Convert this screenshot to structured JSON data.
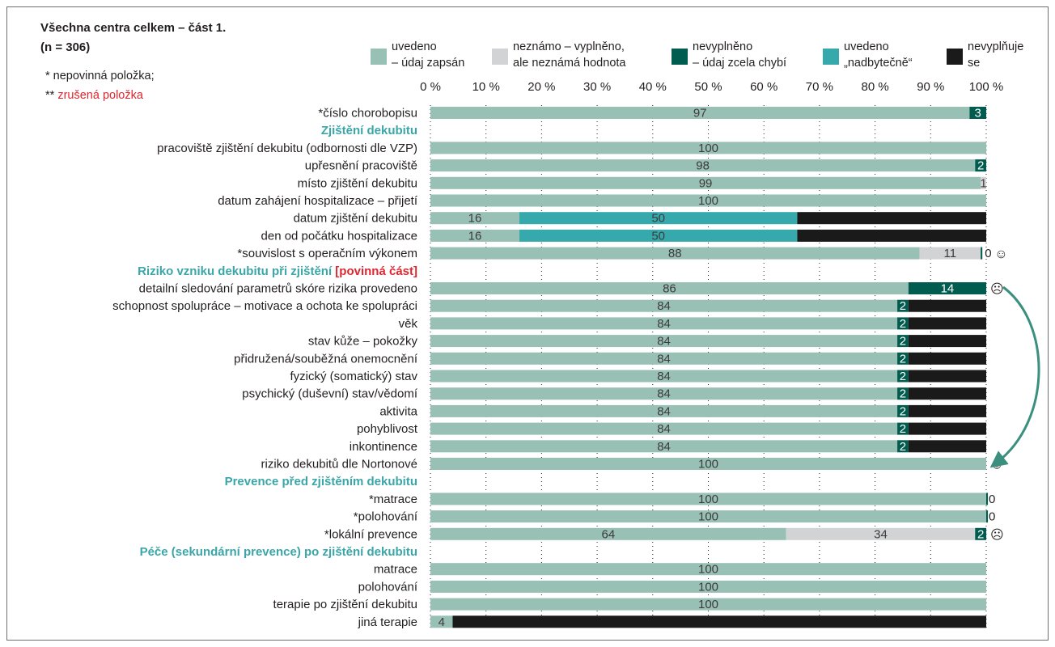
{
  "title": "Všechna centra celkem – část 1.",
  "subtitle": "(n = 306)",
  "notes": {
    "optional": "* nepovinná položka;",
    "cancelled_prefix": "** ",
    "cancelled_label": "zrušená položka"
  },
  "colors": {
    "zapsano": "#99c0b4",
    "nezname": "#d1d3d4",
    "chybi": "#005c4e",
    "nadbytecne": "#36a9ac",
    "nevyplnuje": "#1a1a1a",
    "heading": "#3aa6a8",
    "red": "#e0262f"
  },
  "legend": [
    {
      "key": "zapsano",
      "lines": [
        "uvedeno",
        "– údaj zapsán"
      ]
    },
    {
      "key": "nezname",
      "lines": [
        "neznámo – vyplněno,",
        "ale neznámá hodnota"
      ]
    },
    {
      "key": "chybi",
      "lines": [
        "nevyplněno",
        "– údaj zcela chybí"
      ]
    },
    {
      "key": "nadbytecne",
      "lines": [
        "uvedeno",
        "„nadbytečně“"
      ]
    },
    {
      "key": "nevyplnuje",
      "lines": [
        "nevyplňuje",
        "se"
      ]
    }
  ],
  "chart_data": {
    "type": "bar",
    "orientation": "horizontal-stacked",
    "xlim": [
      0,
      100
    ],
    "xticks": [
      "0 %",
      "10 %",
      "20 %",
      "30 %",
      "40 %",
      "50 %",
      "60 %",
      "70 %",
      "80 %",
      "90 %",
      "100 %"
    ],
    "series_keys": [
      "zapsano",
      "nezname",
      "chybi",
      "nadbytecne",
      "nevyplnuje"
    ],
    "rows": [
      {
        "label": "*číslo chorobopisu",
        "values": {
          "zapsano": 97,
          "chybi": 3
        },
        "labels": {
          "zapsano": "97",
          "chybi": "3"
        }
      },
      {
        "heading": "Zjištění dekubitu"
      },
      {
        "label": "pracoviště zjištění dekubitu (odbornosti dle VZP)",
        "values": {
          "zapsano": 100
        },
        "labels": {
          "zapsano": "100"
        }
      },
      {
        "label": "upřesnění pracoviště",
        "values": {
          "zapsano": 98,
          "chybi": 2
        },
        "labels": {
          "zapsano": "98",
          "chybi": "2"
        }
      },
      {
        "label": "místo zjištění dekubitu",
        "values": {
          "zapsano": 99,
          "nezname": 1
        },
        "labels": {
          "zapsano": "99",
          "nezname": "1"
        }
      },
      {
        "label": "datum zahájení hospitalizace – přijetí",
        "values": {
          "zapsano": 100
        },
        "labels": {
          "zapsano": "100"
        }
      },
      {
        "label": "datum zjištění dekubitu",
        "values": {
          "zapsano": 16,
          "nadbytecne": 50,
          "nevyplnuje": 34
        },
        "labels": {
          "zapsano": "16",
          "nadbytecne": "50"
        }
      },
      {
        "label": "den od počátku hospitalizace",
        "values": {
          "zapsano": 16,
          "nadbytecne": 50,
          "nevyplnuje": 34
        },
        "labels": {
          "zapsano": "16",
          "nadbytecne": "50"
        }
      },
      {
        "label": "*souvislost s operačním výkonem",
        "values": {
          "zapsano": 88,
          "nezname": 11,
          "chybi": 0.3
        },
        "labels": {
          "zapsano": "88",
          "nezname": "11"
        },
        "end": "0",
        "face": "☺"
      },
      {
        "heading": "Riziko vzniku dekubitu při zjištění",
        "headingRed": "[povinná část]"
      },
      {
        "label": "detailní sledování parametrů skóre rizika provedeno",
        "values": {
          "zapsano": 86,
          "chybi": 14
        },
        "labels": {
          "zapsano": "86",
          "chybi": "14"
        },
        "face": "☹"
      },
      {
        "label": "schopnost spolupráce – motivace a ochota ke spolupráci",
        "values": {
          "zapsano": 84,
          "chybi": 2,
          "nevyplnuje": 14
        },
        "labels": {
          "zapsano": "84",
          "chybi": "2"
        }
      },
      {
        "label": "věk",
        "values": {
          "zapsano": 84,
          "chybi": 2,
          "nevyplnuje": 14
        },
        "labels": {
          "zapsano": "84",
          "chybi": "2"
        }
      },
      {
        "label": "stav kůže – pokožky",
        "values": {
          "zapsano": 84,
          "chybi": 2,
          "nevyplnuje": 14
        },
        "labels": {
          "zapsano": "84",
          "chybi": "2"
        }
      },
      {
        "label": "přidružená/souběžná onemocnění",
        "values": {
          "zapsano": 84,
          "chybi": 2,
          "nevyplnuje": 14
        },
        "labels": {
          "zapsano": "84",
          "chybi": "2"
        }
      },
      {
        "label": "fyzický (somatický) stav",
        "values": {
          "zapsano": 84,
          "chybi": 2,
          "nevyplnuje": 14
        },
        "labels": {
          "zapsano": "84",
          "chybi": "2"
        }
      },
      {
        "label": "psychický (duševní) stav/vědomí",
        "values": {
          "zapsano": 84,
          "chybi": 2,
          "nevyplnuje": 14
        },
        "labels": {
          "zapsano": "84",
          "chybi": "2"
        }
      },
      {
        "label": "aktivita",
        "values": {
          "zapsano": 84,
          "chybi": 2,
          "nevyplnuje": 14
        },
        "labels": {
          "zapsano": "84",
          "chybi": "2"
        }
      },
      {
        "label": "pohyblivost",
        "values": {
          "zapsano": 84,
          "chybi": 2,
          "nevyplnuje": 14
        },
        "labels": {
          "zapsano": "84",
          "chybi": "2"
        }
      },
      {
        "label": "inkontinence",
        "values": {
          "zapsano": 84,
          "chybi": 2,
          "nevyplnuje": 14
        },
        "labels": {
          "zapsano": "84",
          "chybi": "2"
        }
      },
      {
        "label": "riziko dekubitů dle Nortonové",
        "values": {
          "zapsano": 100
        },
        "labels": {
          "zapsano": "100"
        },
        "face": "☺"
      },
      {
        "heading": "Prevence před zjištěním dekubitu"
      },
      {
        "label": "*matrace",
        "values": {
          "zapsano": 100,
          "chybi": 0.3
        },
        "labels": {
          "zapsano": "100"
        },
        "end": "0"
      },
      {
        "label": "*polohování",
        "values": {
          "zapsano": 100,
          "chybi": 0.3
        },
        "labels": {
          "zapsano": "100"
        },
        "end": "0"
      },
      {
        "label": "*lokální prevence",
        "values": {
          "zapsano": 64,
          "nezname": 34,
          "chybi": 2
        },
        "labels": {
          "zapsano": "64",
          "nezname": "34",
          "chybi": "2"
        },
        "face": "☹"
      },
      {
        "heading": "Péče (sekundární prevence) po zjištění dekubitu"
      },
      {
        "label": "matrace",
        "values": {
          "zapsano": 100
        },
        "labels": {
          "zapsano": "100"
        }
      },
      {
        "label": "polohování",
        "values": {
          "zapsano": 100
        },
        "labels": {
          "zapsano": "100"
        }
      },
      {
        "label": "terapie po zjištění dekubitu",
        "values": {
          "zapsano": 100
        },
        "labels": {
          "zapsano": "100"
        }
      },
      {
        "label": "jiná terapie",
        "values": {
          "zapsano": 4,
          "nevyplnuje": 96
        },
        "labels": {
          "zapsano": "4"
        }
      }
    ]
  }
}
